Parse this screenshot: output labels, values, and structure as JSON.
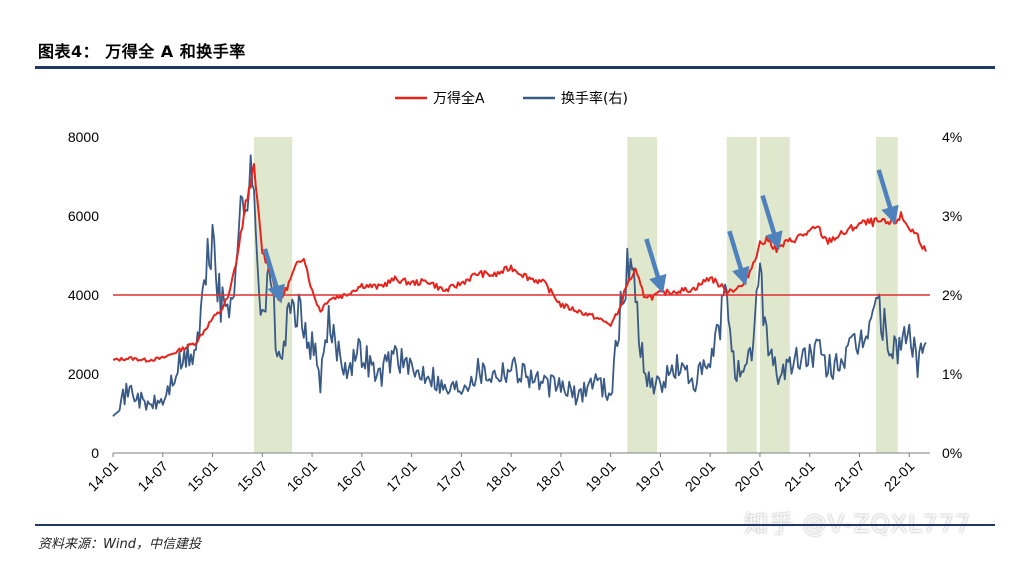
{
  "figure": {
    "title": "图表4： 万得全 A 和换手率",
    "source": "资料来源：Wind，中信建投",
    "watermark": "知乎 @V-ZQXL777"
  },
  "chart_data": {
    "type": "line",
    "x_tick_labels": [
      "14-01",
      "14-07",
      "15-01",
      "15-07",
      "16-01",
      "16-07",
      "17-01",
      "17-07",
      "18-01",
      "18-07",
      "19-01",
      "19-07",
      "20-01",
      "20-07",
      "21-01",
      "21-07",
      "22-01"
    ],
    "y_left": {
      "ticks": [
        "8000",
        "6000",
        "4000",
        "2000",
        "0"
      ],
      "ylim": [
        0,
        8000
      ]
    },
    "y_right": {
      "ticks": [
        "4%",
        "3%",
        "2%",
        "1%",
        "0%"
      ],
      "ylim": [
        0,
        4
      ]
    },
    "reference_line": {
      "axis": "left",
      "value": 4000,
      "color": "#e03030"
    },
    "shaded_periods": [
      [
        "15-06",
        "15-10"
      ],
      [
        "19-03",
        "19-06"
      ],
      [
        "20-03",
        "20-06"
      ],
      [
        "20-07",
        "20-10"
      ],
      [
        "21-09",
        "21-11"
      ]
    ],
    "shade_color": "#dfe8cc",
    "arrows": [
      "15-09",
      "19-07",
      "20-05",
      "20-09",
      "21-11"
    ],
    "arrow_color": "#4f81bd",
    "series": [
      {
        "name": "万得全A",
        "axis": "left",
        "color": "#e8231c",
        "points": [
          [
            "14-01",
            2350
          ],
          [
            "14-03",
            2400
          ],
          [
            "14-05",
            2350
          ],
          [
            "14-07",
            2400
          ],
          [
            "14-09",
            2600
          ],
          [
            "14-11",
            2800
          ],
          [
            "15-01",
            3400
          ],
          [
            "15-02",
            3600
          ],
          [
            "15-03",
            4000
          ],
          [
            "15-04",
            5000
          ],
          [
            "15-05",
            6300
          ],
          [
            "15-06",
            7200
          ],
          [
            "15-07",
            5100
          ],
          [
            "15-08",
            4600
          ],
          [
            "15-09",
            3800
          ],
          [
            "15-10",
            4200
          ],
          [
            "15-11",
            4700
          ],
          [
            "15-12",
            5000
          ],
          [
            "16-01",
            4100
          ],
          [
            "16-02",
            3600
          ],
          [
            "16-03",
            3900
          ],
          [
            "16-05",
            4000
          ],
          [
            "16-07",
            4250
          ],
          [
            "16-09",
            4200
          ],
          [
            "16-11",
            4400
          ],
          [
            "17-01",
            4300
          ],
          [
            "17-03",
            4350
          ],
          [
            "17-05",
            4100
          ],
          [
            "17-07",
            4300
          ],
          [
            "17-09",
            4550
          ],
          [
            "17-11",
            4500
          ],
          [
            "18-01",
            4700
          ],
          [
            "18-03",
            4450
          ],
          [
            "18-05",
            4300
          ],
          [
            "18-07",
            3750
          ],
          [
            "18-09",
            3600
          ],
          [
            "18-11",
            3450
          ],
          [
            "19-01",
            3250
          ],
          [
            "19-02",
            3600
          ],
          [
            "19-03",
            4300
          ],
          [
            "19-04",
            4600
          ],
          [
            "19-05",
            4000
          ],
          [
            "19-06",
            3950
          ],
          [
            "19-07",
            4050
          ],
          [
            "19-09",
            4100
          ],
          [
            "19-11",
            4150
          ],
          [
            "20-01",
            4450
          ],
          [
            "20-03",
            4100
          ],
          [
            "20-04",
            4150
          ],
          [
            "20-05",
            4250
          ],
          [
            "20-06",
            4700
          ],
          [
            "20-07",
            5300
          ],
          [
            "20-08",
            5400
          ],
          [
            "20-09",
            5150
          ],
          [
            "20-10",
            5300
          ],
          [
            "20-12",
            5500
          ],
          [
            "21-02",
            5700
          ],
          [
            "21-03",
            5350
          ],
          [
            "21-05",
            5550
          ],
          [
            "21-07",
            5800
          ],
          [
            "21-09",
            5850
          ],
          [
            "21-11",
            5800
          ],
          [
            "21-12",
            6000
          ],
          [
            "22-01",
            5700
          ],
          [
            "22-02",
            5500
          ],
          [
            "22-03",
            5100
          ]
        ]
      },
      {
        "name": "换手率(右)",
        "axis": "right",
        "color": "#3a5a86",
        "points": [
          [
            "14-01",
            0.55
          ],
          [
            "14-03",
            0.8
          ],
          [
            "14-05",
            0.6
          ],
          [
            "14-07",
            0.65
          ],
          [
            "14-09",
            1.1
          ],
          [
            "14-11",
            1.3
          ],
          [
            "15-01",
            2.8
          ],
          [
            "15-02",
            1.8
          ],
          [
            "15-03",
            1.9
          ],
          [
            "15-04",
            2.6
          ],
          [
            "15-05",
            3.4
          ],
          [
            "15-06",
            3.2
          ],
          [
            "15-07",
            1.8
          ],
          [
            "15-08",
            2.2
          ],
          [
            "15-09",
            1.1
          ],
          [
            "15-10",
            1.6
          ],
          [
            "15-11",
            1.9
          ],
          [
            "15-12",
            1.5
          ],
          [
            "16-01",
            1.4
          ],
          [
            "16-02",
            0.9
          ],
          [
            "16-03",
            1.6
          ],
          [
            "16-05",
            1.1
          ],
          [
            "16-07",
            1.3
          ],
          [
            "16-09",
            0.95
          ],
          [
            "16-11",
            1.3
          ],
          [
            "17-01",
            1.0
          ],
          [
            "17-03",
            1.05
          ],
          [
            "17-05",
            0.8
          ],
          [
            "17-07",
            0.85
          ],
          [
            "17-09",
            1.05
          ],
          [
            "17-11",
            1.0
          ],
          [
            "18-01",
            1.1
          ],
          [
            "18-03",
            1.0
          ],
          [
            "18-05",
            0.85
          ],
          [
            "18-07",
            0.85
          ],
          [
            "18-09",
            0.7
          ],
          [
            "18-11",
            0.95
          ],
          [
            "19-01",
            0.75
          ],
          [
            "19-02",
            1.6
          ],
          [
            "19-03",
            2.4
          ],
          [
            "19-04",
            2.1
          ],
          [
            "19-05",
            1.0
          ],
          [
            "19-06",
            0.9
          ],
          [
            "19-07",
            0.85
          ],
          [
            "19-09",
            1.1
          ],
          [
            "19-11",
            0.9
          ],
          [
            "20-01",
            1.1
          ],
          [
            "20-03",
            2.0
          ],
          [
            "20-04",
            1.1
          ],
          [
            "20-05",
            0.9
          ],
          [
            "20-06",
            1.3
          ],
          [
            "20-07",
            2.3
          ],
          [
            "20-08",
            1.4
          ],
          [
            "20-09",
            1.0
          ],
          [
            "20-10",
            1.05
          ],
          [
            "20-12",
            1.2
          ],
          [
            "21-02",
            1.3
          ],
          [
            "21-03",
            1.05
          ],
          [
            "21-05",
            1.2
          ],
          [
            "21-07",
            1.35
          ],
          [
            "21-09",
            1.9
          ],
          [
            "21-11",
            1.25
          ],
          [
            "21-12",
            1.4
          ],
          [
            "22-01",
            1.5
          ],
          [
            "22-02",
            1.15
          ],
          [
            "22-03",
            1.4
          ]
        ]
      }
    ]
  }
}
